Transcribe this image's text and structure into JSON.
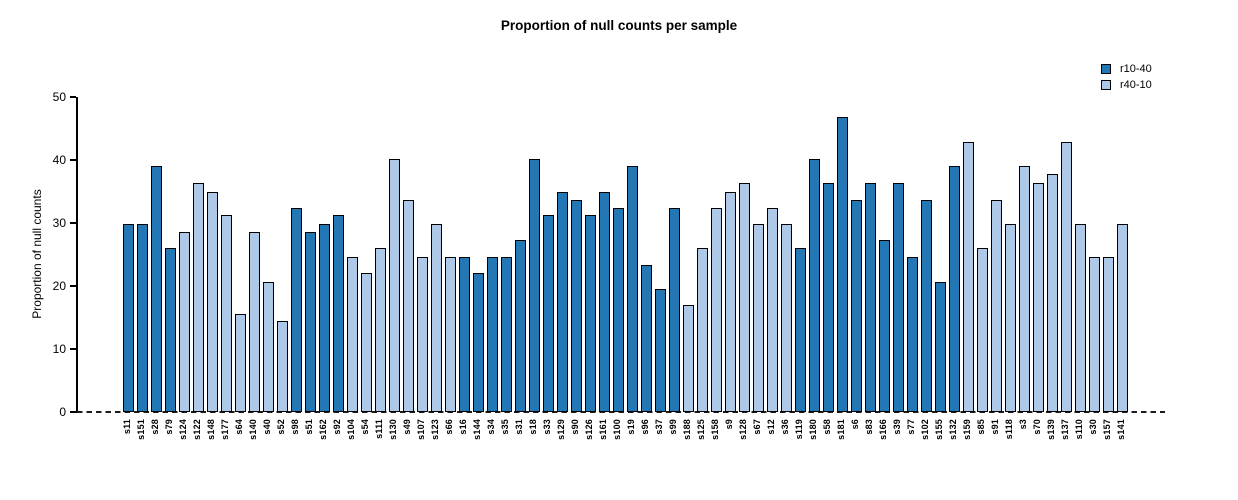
{
  "chart_data": {
    "type": "bar",
    "title": "Proportion of null counts per sample",
    "xlabel": "",
    "ylabel": "Proportion of null counts",
    "ylim": [
      0,
      50
    ],
    "yticks": [
      0,
      10,
      20,
      30,
      40,
      50
    ],
    "grid": false,
    "legend_position": "top-right",
    "legend": [
      {
        "name": "r10-40",
        "color": "#2277B4"
      },
      {
        "name": "r40-10",
        "color": "#AEC8E7"
      }
    ],
    "bars": [
      {
        "label": "s11",
        "value": 29.8,
        "series": "r10-40"
      },
      {
        "label": "s151",
        "value": 29.8,
        "series": "r10-40"
      },
      {
        "label": "s28",
        "value": 39.0,
        "series": "r10-40"
      },
      {
        "label": "s79",
        "value": 26.0,
        "series": "r10-40"
      },
      {
        "label": "s124",
        "value": 28.6,
        "series": "r40-10"
      },
      {
        "label": "s122",
        "value": 36.4,
        "series": "r40-10"
      },
      {
        "label": "s148",
        "value": 35.0,
        "series": "r40-10"
      },
      {
        "label": "s177",
        "value": 31.2,
        "series": "r40-10"
      },
      {
        "label": "s64",
        "value": 15.6,
        "series": "r40-10"
      },
      {
        "label": "s140",
        "value": 28.6,
        "series": "r40-10"
      },
      {
        "label": "s40",
        "value": 20.7,
        "series": "r40-10"
      },
      {
        "label": "s52",
        "value": 14.4,
        "series": "r40-10"
      },
      {
        "label": "s98",
        "value": 32.4,
        "series": "r10-40"
      },
      {
        "label": "s51",
        "value": 28.6,
        "series": "r10-40"
      },
      {
        "label": "s162",
        "value": 29.8,
        "series": "r10-40"
      },
      {
        "label": "s92",
        "value": 31.2,
        "series": "r10-40"
      },
      {
        "label": "s104",
        "value": 24.6,
        "series": "r40-10"
      },
      {
        "label": "s54",
        "value": 22.0,
        "series": "r40-10"
      },
      {
        "label": "s111",
        "value": 26.0,
        "series": "r40-10"
      },
      {
        "label": "s130",
        "value": 40.2,
        "series": "r40-10"
      },
      {
        "label": "s49",
        "value": 33.7,
        "series": "r40-10"
      },
      {
        "label": "s107",
        "value": 24.6,
        "series": "r40-10"
      },
      {
        "label": "s123",
        "value": 29.8,
        "series": "r40-10"
      },
      {
        "label": "s66",
        "value": 24.6,
        "series": "r40-10"
      },
      {
        "label": "s16",
        "value": 24.6,
        "series": "r10-40"
      },
      {
        "label": "s144",
        "value": 22.0,
        "series": "r10-40"
      },
      {
        "label": "s34",
        "value": 24.6,
        "series": "r10-40"
      },
      {
        "label": "s35",
        "value": 24.6,
        "series": "r10-40"
      },
      {
        "label": "s31",
        "value": 27.3,
        "series": "r10-40"
      },
      {
        "label": "s18",
        "value": 40.2,
        "series": "r10-40"
      },
      {
        "label": "s33",
        "value": 31.2,
        "series": "r10-40"
      },
      {
        "label": "s129",
        "value": 35.0,
        "series": "r10-40"
      },
      {
        "label": "s90",
        "value": 33.7,
        "series": "r10-40"
      },
      {
        "label": "s126",
        "value": 31.2,
        "series": "r10-40"
      },
      {
        "label": "s161",
        "value": 35.0,
        "series": "r10-40"
      },
      {
        "label": "s100",
        "value": 32.4,
        "series": "r10-40"
      },
      {
        "label": "s19",
        "value": 39.0,
        "series": "r10-40"
      },
      {
        "label": "s96",
        "value": 23.4,
        "series": "r10-40"
      },
      {
        "label": "s37",
        "value": 19.6,
        "series": "r10-40"
      },
      {
        "label": "s99",
        "value": 32.4,
        "series": "r10-40"
      },
      {
        "label": "s188",
        "value": 17.0,
        "series": "r40-10"
      },
      {
        "label": "s125",
        "value": 26.0,
        "series": "r40-10"
      },
      {
        "label": "s158",
        "value": 32.4,
        "series": "r40-10"
      },
      {
        "label": "s9",
        "value": 35.0,
        "series": "r40-10"
      },
      {
        "label": "s128",
        "value": 36.4,
        "series": "r40-10"
      },
      {
        "label": "s67",
        "value": 29.8,
        "series": "r40-10"
      },
      {
        "label": "s12",
        "value": 32.4,
        "series": "r40-10"
      },
      {
        "label": "s36",
        "value": 29.8,
        "series": "r40-10"
      },
      {
        "label": "s119",
        "value": 26.0,
        "series": "r10-40"
      },
      {
        "label": "s180",
        "value": 40.2,
        "series": "r10-40"
      },
      {
        "label": "s58",
        "value": 36.4,
        "series": "r10-40"
      },
      {
        "label": "s181",
        "value": 46.8,
        "series": "r10-40"
      },
      {
        "label": "s6",
        "value": 33.7,
        "series": "r10-40"
      },
      {
        "label": "s83",
        "value": 36.4,
        "series": "r10-40"
      },
      {
        "label": "s166",
        "value": 27.3,
        "series": "r10-40"
      },
      {
        "label": "s39",
        "value": 36.4,
        "series": "r10-40"
      },
      {
        "label": "s77",
        "value": 24.6,
        "series": "r10-40"
      },
      {
        "label": "s102",
        "value": 33.7,
        "series": "r10-40"
      },
      {
        "label": "s155",
        "value": 20.7,
        "series": "r10-40"
      },
      {
        "label": "s132",
        "value": 39.0,
        "series": "r10-40"
      },
      {
        "label": "s159",
        "value": 42.8,
        "series": "r40-10"
      },
      {
        "label": "s85",
        "value": 26.0,
        "series": "r40-10"
      },
      {
        "label": "s91",
        "value": 33.7,
        "series": "r40-10"
      },
      {
        "label": "s118",
        "value": 29.8,
        "series": "r40-10"
      },
      {
        "label": "s3",
        "value": 39.0,
        "series": "r40-10"
      },
      {
        "label": "s70",
        "value": 36.4,
        "series": "r40-10"
      },
      {
        "label": "s139",
        "value": 37.7,
        "series": "r40-10"
      },
      {
        "label": "s137",
        "value": 42.8,
        "series": "r40-10"
      },
      {
        "label": "s110",
        "value": 29.8,
        "series": "r40-10"
      },
      {
        "label": "s30",
        "value": 24.6,
        "series": "r40-10"
      },
      {
        "label": "s157",
        "value": 24.6,
        "series": "r40-10"
      },
      {
        "label": "s141",
        "value": 29.8,
        "series": "r40-10"
      }
    ]
  }
}
